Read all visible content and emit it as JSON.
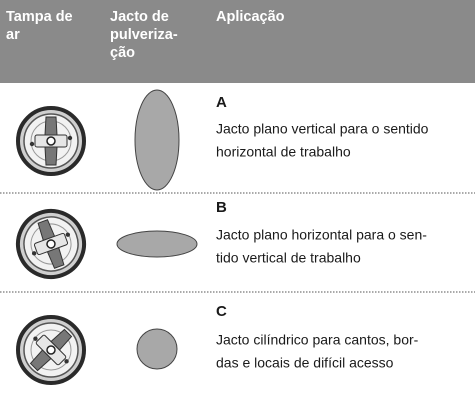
{
  "table": {
    "header": [
      [
        "Tampa de",
        "ar"
      ],
      [
        "Jacto de",
        "pulveriza-",
        "ção"
      ],
      [
        "Aplicação"
      ]
    ],
    "rows": [
      {
        "letter": "A",
        "lines": [
          "Jacto plano vertical para o sentido",
          "horizontal de trabalho"
        ]
      },
      {
        "letter": "B",
        "lines": [
          "Jacto plano horizontal para o sen-",
          "tido vertical de trabalho"
        ]
      },
      {
        "letter": "C",
        "lines": [
          "Jacto cilíndrico para cantos, bor-",
          "das e locais de difícil acesso"
        ]
      }
    ]
  }
}
